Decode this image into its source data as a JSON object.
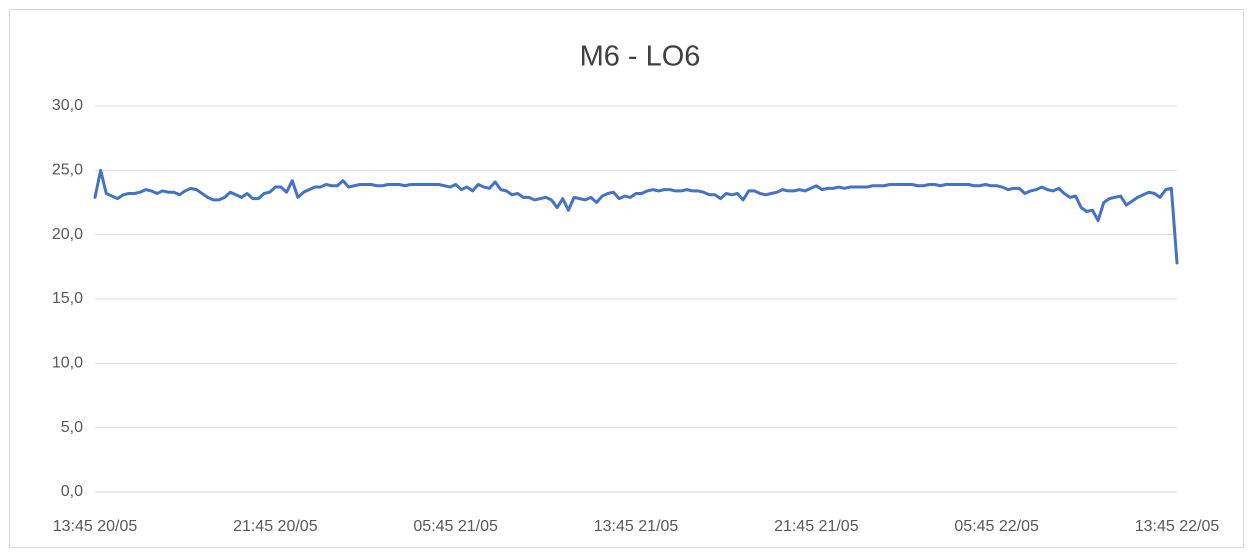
{
  "chart_data": {
    "type": "line",
    "title": "M6 - LO6",
    "categories": [
      "13:45 20/05",
      null,
      null,
      null,
      null,
      null,
      null,
      null,
      null,
      null,
      null,
      null,
      null,
      null,
      null,
      null,
      null,
      null,
      null,
      null,
      null,
      null,
      null,
      null,
      null,
      null,
      null,
      null,
      null,
      null,
      null,
      null,
      "21:45 20/05",
      null,
      null,
      null,
      null,
      null,
      null,
      null,
      null,
      null,
      null,
      null,
      null,
      null,
      null,
      null,
      null,
      null,
      null,
      null,
      null,
      null,
      null,
      null,
      null,
      null,
      null,
      null,
      null,
      null,
      null,
      null,
      "05:45 21/05",
      null,
      null,
      null,
      null,
      null,
      null,
      null,
      null,
      null,
      null,
      null,
      null,
      null,
      null,
      null,
      null,
      null,
      null,
      null,
      null,
      null,
      null,
      null,
      null,
      null,
      null,
      null,
      null,
      null,
      null,
      null,
      "13:45 21/05",
      null,
      null,
      null,
      null,
      null,
      null,
      null,
      null,
      null,
      null,
      null,
      null,
      null,
      null,
      null,
      null,
      null,
      null,
      null,
      null,
      null,
      null,
      null,
      null,
      null,
      null,
      null,
      null,
      null,
      null,
      null,
      "21:45 21/05",
      null,
      null,
      null,
      null,
      null,
      null,
      null,
      null,
      null,
      null,
      null,
      null,
      null,
      null,
      null,
      null,
      null,
      null,
      null,
      null,
      null,
      null,
      null,
      null,
      null,
      null,
      null,
      null,
      null,
      null,
      null,
      "05:45 22/05",
      null,
      null,
      null,
      null,
      null,
      null,
      null,
      null,
      null,
      null,
      null,
      null,
      null,
      null,
      null,
      null,
      null,
      null,
      null,
      null,
      null,
      null,
      null,
      null,
      null,
      null,
      null,
      null,
      null,
      null,
      null,
      "13:45 22/05"
    ],
    "series": [
      {
        "color": "#4472c4",
        "values": [
          22.9,
          25.0,
          23.2,
          23.0,
          22.8,
          23.1,
          23.2,
          23.2,
          23.3,
          23.5,
          23.4,
          23.2,
          23.4,
          23.3,
          23.3,
          23.1,
          23.4,
          23.6,
          23.5,
          23.2,
          22.9,
          22.7,
          22.7,
          22.9,
          23.3,
          23.1,
          22.9,
          23.2,
          22.8,
          22.8,
          23.2,
          23.3,
          23.7,
          23.7,
          23.3,
          24.2,
          22.9,
          23.3,
          23.5,
          23.7,
          23.7,
          23.9,
          23.8,
          23.8,
          24.2,
          23.7,
          23.8,
          23.9,
          23.9,
          23.9,
          23.8,
          23.8,
          23.9,
          23.9,
          23.9,
          23.8,
          23.9,
          23.9,
          23.9,
          23.9,
          23.9,
          23.9,
          23.8,
          23.7,
          23.9,
          23.5,
          23.7,
          23.4,
          23.9,
          23.7,
          23.6,
          24.1,
          23.5,
          23.4,
          23.1,
          23.2,
          22.9,
          22.9,
          22.7,
          22.8,
          22.9,
          22.7,
          22.1,
          22.8,
          21.9,
          22.9,
          22.8,
          22.7,
          22.9,
          22.5,
          23.0,
          23.2,
          23.3,
          22.8,
          23.0,
          22.9,
          23.2,
          23.2,
          23.4,
          23.5,
          23.4,
          23.5,
          23.5,
          23.4,
          23.4,
          23.5,
          23.4,
          23.4,
          23.3,
          23.1,
          23.1,
          22.8,
          23.2,
          23.1,
          23.2,
          22.7,
          23.4,
          23.4,
          23.2,
          23.1,
          23.2,
          23.3,
          23.5,
          23.4,
          23.4,
          23.5,
          23.4,
          23.6,
          23.8,
          23.5,
          23.6,
          23.6,
          23.7,
          23.6,
          23.7,
          23.7,
          23.7,
          23.7,
          23.8,
          23.8,
          23.8,
          23.9,
          23.9,
          23.9,
          23.9,
          23.9,
          23.8,
          23.8,
          23.9,
          23.9,
          23.8,
          23.9,
          23.9,
          23.9,
          23.9,
          23.9,
          23.8,
          23.8,
          23.9,
          23.8,
          23.8,
          23.7,
          23.5,
          23.6,
          23.6,
          23.2,
          23.4,
          23.5,
          23.7,
          23.5,
          23.4,
          23.6,
          23.2,
          22.9,
          23.0,
          22.1,
          21.8,
          21.9,
          21.1,
          22.5,
          22.8,
          22.9,
          23.0,
          22.3,
          22.6,
          22.9,
          23.1,
          23.3,
          23.2,
          22.9,
          23.5,
          23.6,
          17.8
        ]
      }
    ],
    "ylim": [
      0,
      30
    ],
    "yticks": [
      {
        "value": 0,
        "label": "0,0"
      },
      {
        "value": 5,
        "label": "5,0"
      },
      {
        "value": 10,
        "label": "10,0"
      },
      {
        "value": 15,
        "label": "15,0"
      },
      {
        "value": 20,
        "label": "20,0"
      },
      {
        "value": 25,
        "label": "25,0"
      },
      {
        "value": 30,
        "label": "30,0"
      }
    ],
    "grid": true
  }
}
